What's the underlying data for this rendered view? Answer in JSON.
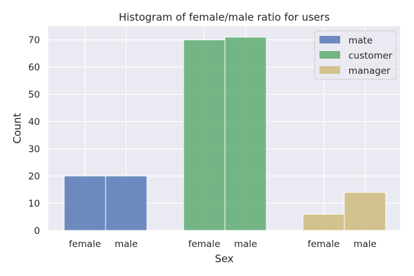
{
  "chart_data": {
    "type": "bar",
    "title": "Histogram of female/male ratio for users",
    "xlabel": "Sex",
    "ylabel": "Count",
    "ylim": [
      0,
      75
    ],
    "yticks": [
      0,
      10,
      20,
      30,
      40,
      50,
      60,
      70
    ],
    "grid": true,
    "legend_position": "top-right",
    "background": "#eaeaf2",
    "groups": [
      {
        "name": "mate",
        "color": "#4c72b0",
        "bars": [
          {
            "category": "female",
            "value": 20
          },
          {
            "category": "male",
            "value": 20
          }
        ]
      },
      {
        "name": "customer",
        "color": "#55a868",
        "bars": [
          {
            "category": "female",
            "value": 70
          },
          {
            "category": "male",
            "value": 71
          }
        ]
      },
      {
        "name": "manager",
        "color": "#ccb974",
        "bars": [
          {
            "category": "female",
            "value": 6
          },
          {
            "category": "male",
            "value": 14
          }
        ]
      }
    ]
  }
}
